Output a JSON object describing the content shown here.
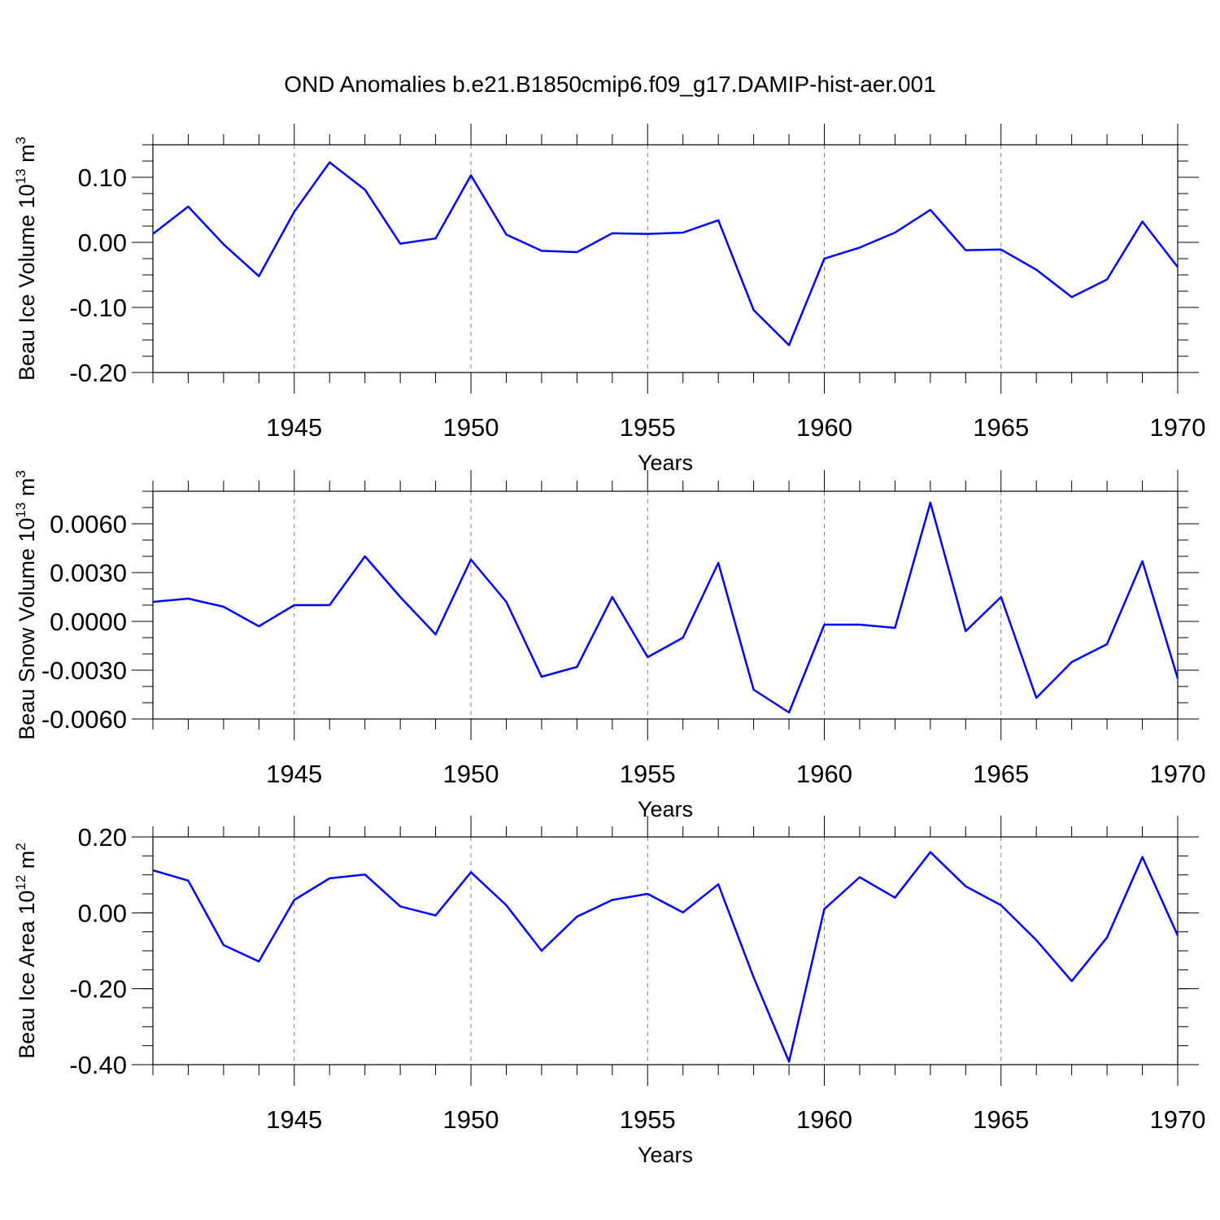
{
  "title": "OND Anomalies b.e21.B1850cmip6.f09_g17.DAMIP-hist-aer.001",
  "colors": {
    "line": "#0000ff",
    "axis": "#000000",
    "grid": "#808080"
  },
  "chart_data": [
    {
      "type": "line",
      "ylabel": "Beau Ice Volume 10",
      "ylabel_exp": "13",
      "ylabel_unit": " m",
      "ylabel_unit_exp": "3",
      "xlabel": "Years",
      "xlim": [
        1941,
        1970
      ],
      "ylim": [
        -0.2,
        0.15
      ],
      "yticks": [
        -0.2,
        -0.1,
        0.0,
        0.1
      ],
      "ytick_labels": [
        "-0.20",
        "-0.10",
        "0.00",
        "0.10"
      ],
      "yminor": 0.025,
      "xticks": [
        1945,
        1950,
        1955,
        1960,
        1965,
        1970
      ],
      "xtick_labels": [
        "1945",
        "1950",
        "1955",
        "1960",
        "1965",
        "1970"
      ],
      "grid": "vertical dashed at major x ticks",
      "series": [
        {
          "x": [
            1941,
            1942,
            1943,
            1944,
            1945,
            1946,
            1947,
            1948,
            1949,
            1950,
            1951,
            1952,
            1953,
            1954,
            1955,
            1956,
            1957,
            1958,
            1959,
            1960,
            1961,
            1962,
            1963,
            1964,
            1965,
            1966,
            1967,
            1968,
            1969,
            1970
          ],
          "values": [
            0.013,
            0.055,
            -0.003,
            -0.052,
            0.047,
            0.123,
            0.081,
            -0.002,
            0.006,
            0.103,
            0.012,
            -0.013,
            -0.015,
            0.014,
            0.013,
            0.015,
            0.034,
            -0.104,
            -0.158,
            -0.025,
            -0.008,
            0.015,
            0.05,
            -0.012,
            -0.011,
            -0.042,
            -0.084,
            -0.057,
            0.032,
            -0.038
          ]
        }
      ]
    },
    {
      "type": "line",
      "ylabel": "Beau Snow Volume 10",
      "ylabel_exp": "13",
      "ylabel_unit": " m",
      "ylabel_unit_exp": "3",
      "xlabel": "Years",
      "xlim": [
        1941,
        1970
      ],
      "ylim": [
        -0.006,
        0.008
      ],
      "yticks": [
        -0.006,
        -0.003,
        0.0,
        0.003,
        0.006
      ],
      "ytick_labels": [
        "-0.0060",
        "-0.0030",
        "0.0000",
        "0.0030",
        "0.0060"
      ],
      "yminor": 0.001,
      "xticks": [
        1945,
        1950,
        1955,
        1960,
        1965,
        1970
      ],
      "xtick_labels": [
        "1945",
        "1950",
        "1955",
        "1960",
        "1965",
        "1970"
      ],
      "grid": "vertical dashed at major x ticks",
      "series": [
        {
          "x": [
            1941,
            1942,
            1943,
            1944,
            1945,
            1946,
            1947,
            1948,
            1949,
            1950,
            1951,
            1952,
            1953,
            1954,
            1955,
            1956,
            1957,
            1958,
            1959,
            1960,
            1961,
            1962,
            1963,
            1964,
            1965,
            1966,
            1967,
            1968,
            1969,
            1970
          ],
          "values": [
            0.0012,
            0.0014,
            0.0009,
            -0.0003,
            0.001,
            0.001,
            0.004,
            0.0015,
            -0.0008,
            0.0038,
            0.0012,
            -0.0034,
            -0.0028,
            0.0015,
            -0.0022,
            -0.001,
            0.0036,
            -0.0042,
            -0.0056,
            -0.0002,
            -0.0002,
            -0.0004,
            0.0073,
            -0.0006,
            0.0015,
            -0.0047,
            -0.0025,
            -0.0014,
            0.0037,
            -0.0035
          ]
        }
      ]
    },
    {
      "type": "line",
      "ylabel": "Beau Ice Area 10",
      "ylabel_exp": "12",
      "ylabel_unit": " m",
      "ylabel_unit_exp": "2",
      "xlabel": "Years",
      "xlim": [
        1941,
        1970
      ],
      "ylim": [
        -0.4,
        0.2
      ],
      "yticks": [
        -0.4,
        -0.2,
        0.0,
        0.2
      ],
      "ytick_labels": [
        "-0.40",
        "-0.20",
        "0.00",
        "0.20"
      ],
      "yminor": 0.05,
      "xticks": [
        1945,
        1950,
        1955,
        1960,
        1965,
        1970
      ],
      "xtick_labels": [
        "1945",
        "1950",
        "1955",
        "1960",
        "1965",
        "1970"
      ],
      "grid": "vertical dashed at major x ticks",
      "series": [
        {
          "x": [
            1941,
            1942,
            1943,
            1944,
            1945,
            1946,
            1947,
            1948,
            1949,
            1950,
            1951,
            1952,
            1953,
            1954,
            1955,
            1956,
            1957,
            1958,
            1959,
            1960,
            1961,
            1962,
            1963,
            1964,
            1965,
            1966,
            1967,
            1968,
            1969,
            1970
          ],
          "values": [
            0.112,
            0.085,
            -0.085,
            -0.128,
            0.034,
            0.091,
            0.101,
            0.017,
            -0.007,
            0.107,
            0.02,
            -0.1,
            -0.01,
            0.034,
            0.05,
            0.001,
            0.075,
            -0.17,
            -0.392,
            0.01,
            0.094,
            0.04,
            0.16,
            0.07,
            0.02,
            -0.072,
            -0.18,
            -0.065,
            0.147,
            -0.06
          ]
        }
      ]
    }
  ]
}
